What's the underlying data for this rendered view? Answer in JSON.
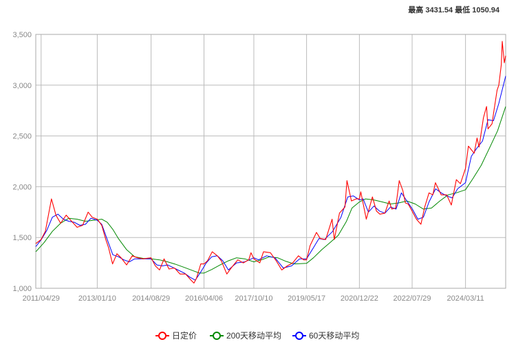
{
  "header": {
    "high_label": "最高",
    "high_value": "3431.54",
    "low_label": "最低",
    "low_value": "1050.94"
  },
  "chart_data": {
    "type": "line",
    "title": "",
    "xlabel": "",
    "ylabel": "",
    "x_range": [
      "2011/03/01",
      "2025/05/30"
    ],
    "ylim": [
      1000,
      3500
    ],
    "y_ticks": [
      1000,
      1500,
      2000,
      2500,
      3000,
      3500
    ],
    "y_tick_labels": [
      "1,000",
      "1,500",
      "2,000",
      "2,500",
      "3,000",
      "3,500"
    ],
    "x_tick_labels": [
      "2011/04/29",
      "2013/01/10",
      "2014/08/29",
      "2016/04/06",
      "2017/10/10",
      "2019/05/17",
      "2020/12/22",
      "2022/07/29",
      "2024/03/11"
    ],
    "grid": true,
    "legend_position": "bottom-center",
    "series": [
      {
        "name": "日定价",
        "color": "#ff0000",
        "points": [
          [
            "2011/03/01",
            1440
          ],
          [
            "2011/04/29",
            1480
          ],
          [
            "2011/06/15",
            1560
          ],
          [
            "2011/08/22",
            1880
          ],
          [
            "2011/10/10",
            1720
          ],
          [
            "2011/12/01",
            1640
          ],
          [
            "2012/02/01",
            1720
          ],
          [
            "2012/04/01",
            1660
          ],
          [
            "2012/06/01",
            1600
          ],
          [
            "2012/08/01",
            1620
          ],
          [
            "2012/10/01",
            1750
          ],
          [
            "2012/11/15",
            1700
          ],
          [
            "2013/01/10",
            1680
          ],
          [
            "2013/03/01",
            1620
          ],
          [
            "2013/04/15",
            1480
          ],
          [
            "2013/05/15",
            1400
          ],
          [
            "2013/06/28",
            1240
          ],
          [
            "2013/08/15",
            1340
          ],
          [
            "2013/10/01",
            1300
          ],
          [
            "2013/12/01",
            1230
          ],
          [
            "2014/02/01",
            1320
          ],
          [
            "2014/04/01",
            1300
          ],
          [
            "2014/06/01",
            1290
          ],
          [
            "2014/08/29",
            1300
          ],
          [
            "2014/10/15",
            1220
          ],
          [
            "2014/12/01",
            1180
          ],
          [
            "2015/01/20",
            1290
          ],
          [
            "2015/03/15",
            1190
          ],
          [
            "2015/05/15",
            1200
          ],
          [
            "2015/07/15",
            1140
          ],
          [
            "2015/09/15",
            1140
          ],
          [
            "2015/11/15",
            1080
          ],
          [
            "2015/12/17",
            1051
          ],
          [
            "2016/01/15",
            1100
          ],
          [
            "2016/03/01",
            1240
          ],
          [
            "2016/04/06",
            1240
          ],
          [
            "2016/05/15",
            1270
          ],
          [
            "2016/07/06",
            1360
          ],
          [
            "2016/09/01",
            1320
          ],
          [
            "2016/10/15",
            1270
          ],
          [
            "2016/12/15",
            1140
          ],
          [
            "2017/02/01",
            1200
          ],
          [
            "2017/04/15",
            1280
          ],
          [
            "2017/06/15",
            1250
          ],
          [
            "2017/08/15",
            1280
          ],
          [
            "2017/09/08",
            1350
          ],
          [
            "2017/10/10",
            1290
          ],
          [
            "2017/12/15",
            1250
          ],
          [
            "2018/01/25",
            1360
          ],
          [
            "2018/04/11",
            1350
          ],
          [
            "2018/06/15",
            1270
          ],
          [
            "2018/08/15",
            1180
          ],
          [
            "2018/10/15",
            1220
          ],
          [
            "2018/12/15",
            1250
          ],
          [
            "2019/02/15",
            1320
          ],
          [
            "2019/04/15",
            1280
          ],
          [
            "2019/05/17",
            1280
          ],
          [
            "2019/06/25",
            1420
          ],
          [
            "2019/09/04",
            1550
          ],
          [
            "2019/10/15",
            1490
          ],
          [
            "2019/12/15",
            1480
          ],
          [
            "2020/02/24",
            1680
          ],
          [
            "2020/03/19",
            1480
          ],
          [
            "2020/05/15",
            1740
          ],
          [
            "2020/07/15",
            1800
          ],
          [
            "2020/08/06",
            2060
          ],
          [
            "2020/09/25",
            1860
          ],
          [
            "2020/11/15",
            1880
          ],
          [
            "2020/12/22",
            1880
          ],
          [
            "2021/01/06",
            1950
          ],
          [
            "2021/03/08",
            1680
          ],
          [
            "2021/05/15",
            1900
          ],
          [
            "2021/06/29",
            1760
          ],
          [
            "2021/08/06",
            1730
          ],
          [
            "2021/09/30",
            1740
          ],
          [
            "2021/11/16",
            1860
          ],
          [
            "2021/12/15",
            1780
          ],
          [
            "2022/01/28",
            1790
          ],
          [
            "2022/03/08",
            2060
          ],
          [
            "2022/04/18",
            1960
          ],
          [
            "2022/05/15",
            1840
          ],
          [
            "2022/06/15",
            1830
          ],
          [
            "2022/07/29",
            1760
          ],
          [
            "2022/09/15",
            1680
          ],
          [
            "2022/11/03",
            1630
          ],
          [
            "2022/12/15",
            1800
          ],
          [
            "2023/02/01",
            1940
          ],
          [
            "2023/03/15",
            1920
          ],
          [
            "2023/04/13",
            2040
          ],
          [
            "2023/06/15",
            1920
          ],
          [
            "2023/08/15",
            1920
          ],
          [
            "2023/10/06",
            1820
          ],
          [
            "2023/12/01",
            2070
          ],
          [
            "2024/01/15",
            2030
          ],
          [
            "2024/03/11",
            2180
          ],
          [
            "2024/04/12",
            2400
          ],
          [
            "2024/06/15",
            2330
          ],
          [
            "2024/07/17",
            2480
          ],
          [
            "2024/08/08",
            2390
          ],
          [
            "2024/09/26",
            2680
          ],
          [
            "2024/10/30",
            2790
          ],
          [
            "2024/11/15",
            2570
          ],
          [
            "2024/12/30",
            2620
          ],
          [
            "2025/01/15",
            2720
          ],
          [
            "2025/02/24",
            2950
          ],
          [
            "2025/03/15",
            3000
          ],
          [
            "2025/04/11",
            3200
          ],
          [
            "2025/04/22",
            3431.54
          ],
          [
            "2025/05/15",
            3220
          ],
          [
            "2025/05/30",
            3290
          ]
        ]
      },
      {
        "name": "200天移动平均",
        "color": "#008800",
        "points": [
          [
            "2011/03/01",
            1360
          ],
          [
            "2011/06/01",
            1450
          ],
          [
            "2011/09/01",
            1560
          ],
          [
            "2011/12/01",
            1640
          ],
          [
            "2012/03/01",
            1690
          ],
          [
            "2012/06/01",
            1680
          ],
          [
            "2012/09/01",
            1660
          ],
          [
            "2012/12/01",
            1670
          ],
          [
            "2013/03/01",
            1680
          ],
          [
            "2013/05/01",
            1650
          ],
          [
            "2013/07/01",
            1580
          ],
          [
            "2013/09/01",
            1490
          ],
          [
            "2013/12/01",
            1380
          ],
          [
            "2014/03/01",
            1310
          ],
          [
            "2014/06/01",
            1295
          ],
          [
            "2014/09/01",
            1290
          ],
          [
            "2014/12/01",
            1280
          ],
          [
            "2015/03/01",
            1260
          ],
          [
            "2015/06/01",
            1235
          ],
          [
            "2015/09/01",
            1205
          ],
          [
            "2015/12/01",
            1175
          ],
          [
            "2016/02/15",
            1150
          ],
          [
            "2016/04/06",
            1150
          ],
          [
            "2016/07/01",
            1185
          ],
          [
            "2016/10/01",
            1230
          ],
          [
            "2017/01/01",
            1270
          ],
          [
            "2017/04/01",
            1300
          ],
          [
            "2017/07/01",
            1290
          ],
          [
            "2017/10/10",
            1260
          ],
          [
            "2018/01/01",
            1280
          ],
          [
            "2018/04/01",
            1310
          ],
          [
            "2018/07/01",
            1300
          ],
          [
            "2018/10/01",
            1265
          ],
          [
            "2019/01/01",
            1240
          ],
          [
            "2019/05/17",
            1245
          ],
          [
            "2019/08/01",
            1300
          ],
          [
            "2019/11/01",
            1380
          ],
          [
            "2020/02/01",
            1450
          ],
          [
            "2020/05/01",
            1520
          ],
          [
            "2020/08/01",
            1660
          ],
          [
            "2020/10/01",
            1790
          ],
          [
            "2020/12/22",
            1850
          ],
          [
            "2021/03/01",
            1880
          ],
          [
            "2021/06/01",
            1870
          ],
          [
            "2021/09/01",
            1850
          ],
          [
            "2021/12/01",
            1830
          ],
          [
            "2022/03/01",
            1840
          ],
          [
            "2022/06/01",
            1860
          ],
          [
            "2022/09/01",
            1830
          ],
          [
            "2022/12/01",
            1780
          ],
          [
            "2023/03/01",
            1790
          ],
          [
            "2023/06/01",
            1860
          ],
          [
            "2023/09/01",
            1920
          ],
          [
            "2023/12/01",
            1940
          ],
          [
            "2024/03/11",
            1970
          ],
          [
            "2024/06/01",
            2080
          ],
          [
            "2024/09/01",
            2210
          ],
          [
            "2024/12/01",
            2380
          ],
          [
            "2025/03/01",
            2550
          ],
          [
            "2025/05/30",
            2790
          ]
        ]
      },
      {
        "name": "60天移动平均",
        "color": "#0000ff",
        "points": [
          [
            "2011/03/01",
            1410
          ],
          [
            "2011/05/01",
            1480
          ],
          [
            "2011/07/01",
            1570
          ],
          [
            "2011/09/01",
            1700
          ],
          [
            "2011/11/01",
            1730
          ],
          [
            "2012/01/01",
            1680
          ],
          [
            "2012/03/01",
            1660
          ],
          [
            "2012/05/01",
            1650
          ],
          [
            "2012/07/01",
            1620
          ],
          [
            "2012/09/01",
            1630
          ],
          [
            "2012/11/01",
            1690
          ],
          [
            "2013/01/10",
            1670
          ],
          [
            "2013/03/01",
            1630
          ],
          [
            "2013/05/01",
            1480
          ],
          [
            "2013/07/01",
            1330
          ],
          [
            "2013/09/01",
            1310
          ],
          [
            "2013/11/01",
            1280
          ],
          [
            "2014/01/01",
            1260
          ],
          [
            "2014/03/01",
            1290
          ],
          [
            "2014/06/01",
            1290
          ],
          [
            "2014/08/29",
            1290
          ],
          [
            "2014/11/01",
            1230
          ],
          [
            "2015/01/01",
            1220
          ],
          [
            "2015/03/01",
            1230
          ],
          [
            "2015/06/01",
            1190
          ],
          [
            "2015/09/01",
            1150
          ],
          [
            "2015/11/01",
            1110
          ],
          [
            "2016/01/01",
            1080
          ],
          [
            "2016/03/01",
            1160
          ],
          [
            "2016/05/01",
            1250
          ],
          [
            "2016/07/01",
            1310
          ],
          [
            "2016/09/01",
            1320
          ],
          [
            "2016/11/01",
            1270
          ],
          [
            "2017/01/01",
            1180
          ],
          [
            "2017/04/01",
            1250
          ],
          [
            "2017/07/01",
            1260
          ],
          [
            "2017/10/10",
            1300
          ],
          [
            "2017/12/01",
            1280
          ],
          [
            "2018/03/01",
            1320
          ],
          [
            "2018/06/01",
            1300
          ],
          [
            "2018/09/01",
            1200
          ],
          [
            "2018/12/01",
            1220
          ],
          [
            "2019/03/01",
            1290
          ],
          [
            "2019/05/17",
            1290
          ],
          [
            "2019/08/01",
            1400
          ],
          [
            "2019/10/01",
            1490
          ],
          [
            "2019/12/01",
            1480
          ],
          [
            "2020/03/01",
            1560
          ],
          [
            "2020/06/01",
            1700
          ],
          [
            "2020/08/15",
            1900
          ],
          [
            "2020/10/15",
            1910
          ],
          [
            "2020/12/22",
            1870
          ],
          [
            "2021/02/01",
            1880
          ],
          [
            "2021/04/01",
            1750
          ],
          [
            "2021/06/01",
            1810
          ],
          [
            "2021/08/01",
            1760
          ],
          [
            "2021/10/01",
            1740
          ],
          [
            "2021/12/01",
            1800
          ],
          [
            "2022/02/01",
            1780
          ],
          [
            "2022/04/01",
            1940
          ],
          [
            "2022/06/01",
            1860
          ],
          [
            "2022/08/01",
            1780
          ],
          [
            "2022/10/01",
            1680
          ],
          [
            "2022/12/01",
            1700
          ],
          [
            "2023/02/01",
            1850
          ],
          [
            "2023/04/15",
            1980
          ],
          [
            "2023/06/15",
            1940
          ],
          [
            "2023/08/15",
            1910
          ],
          [
            "2023/10/15",
            1890
          ],
          [
            "2023/12/15",
            1980
          ],
          [
            "2024/03/11",
            2040
          ],
          [
            "2024/05/15",
            2300
          ],
          [
            "2024/07/15",
            2380
          ],
          [
            "2024/09/15",
            2450
          ],
          [
            "2024/11/15",
            2660
          ],
          [
            "2025/01/15",
            2650
          ],
          [
            "2025/03/15",
            2820
          ],
          [
            "2025/05/30",
            3090
          ]
        ]
      }
    ]
  }
}
